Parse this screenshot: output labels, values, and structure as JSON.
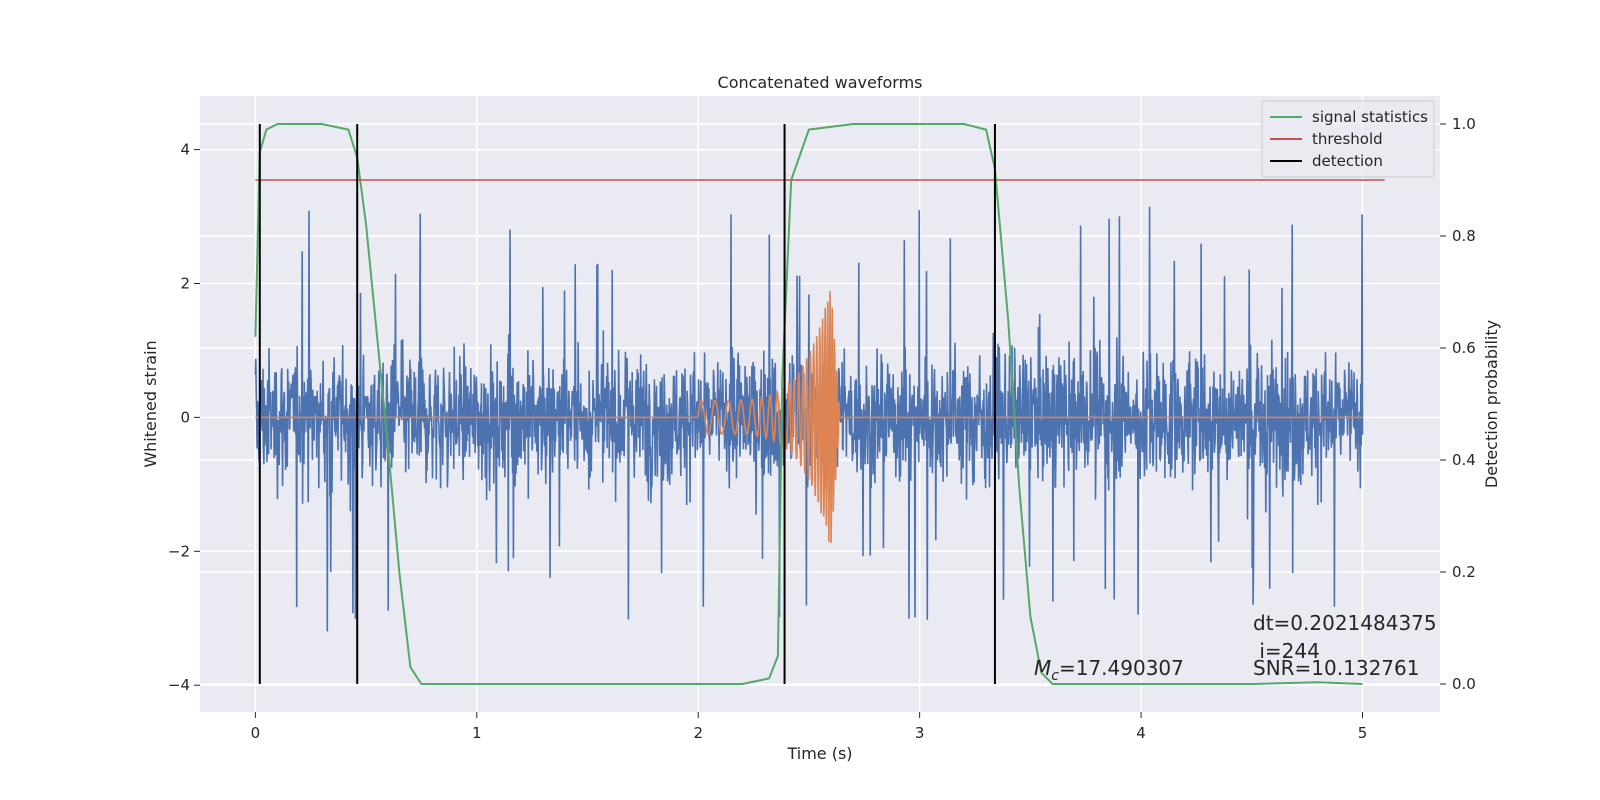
{
  "chart_data": {
    "type": "line",
    "title": "Concatenated waveforms",
    "xlabel": "Time (s)",
    "ylabel": "Whitened strain",
    "y2label": "Detection probability",
    "xlim": [
      -0.25,
      5.35
    ],
    "ylim": [
      -4.4,
      4.8
    ],
    "y2lim": [
      -0.05,
      1.05
    ],
    "x_ticks": [
      0,
      1,
      2,
      3,
      4,
      5
    ],
    "x_tick_labels": [
      "0",
      "1",
      "2",
      "3",
      "4",
      "5"
    ],
    "y_ticks": [
      -4,
      -2,
      0,
      2,
      4
    ],
    "y_tick_labels": [
      "−4",
      "−2",
      "0",
      "2",
      "4"
    ],
    "y2_ticks": [
      0.0,
      0.2,
      0.4,
      0.6,
      0.8,
      1.0
    ],
    "y2_tick_labels": [
      "0.0",
      "0.2",
      "0.4",
      "0.6",
      "0.8",
      "1.0"
    ],
    "grid": true,
    "legend_position": "top-right",
    "legend": [
      "signal statistics",
      "threshold",
      "detection"
    ],
    "colors": {
      "noise": "#4c72b0",
      "waveform": "#dd8452",
      "signal_statistics": "#55a868",
      "threshold": "#c44e52",
      "detection": "#000000",
      "axes_bg": "#eaeaf2",
      "grid": "#ffffff",
      "text": "#262626"
    },
    "series": [
      {
        "name": "signal statistics",
        "axis": "right",
        "x": [
          0.0,
          0.02,
          0.05,
          0.1,
          0.3,
          0.42,
          0.46,
          0.5,
          0.55,
          0.6,
          0.65,
          0.7,
          0.75,
          0.8,
          1.5,
          2.2,
          2.32,
          2.36,
          2.38,
          2.42,
          2.5,
          2.7,
          3.2,
          3.3,
          3.34,
          3.4,
          3.45,
          3.5,
          3.55,
          3.6,
          4.0,
          4.5,
          4.8,
          5.0
        ],
        "y": [
          0.62,
          0.95,
          0.99,
          1.0,
          1.0,
          0.99,
          0.94,
          0.82,
          0.62,
          0.42,
          0.2,
          0.03,
          0.0,
          0.0,
          0.0,
          0.0,
          0.01,
          0.05,
          0.55,
          0.9,
          0.99,
          1.0,
          1.0,
          0.99,
          0.92,
          0.65,
          0.35,
          0.12,
          0.02,
          0.0,
          0.0,
          0.0,
          0.003,
          0.0
        ]
      },
      {
        "name": "threshold",
        "axis": "right",
        "x": [
          0.0,
          5.1
        ],
        "y": [
          0.9,
          0.9
        ]
      }
    ],
    "detections": [
      0.02,
      0.46,
      2.39,
      3.34
    ],
    "noise_series": {
      "x_range": [
        0.0,
        5.0
      ],
      "typical_amplitude": 0.8,
      "peak_amplitude": 4.2
    },
    "waveform_series": {
      "x_range": [
        0.0,
        5.0
      ],
      "chirp_start": 2.0,
      "merger": 2.6,
      "start_amplitude": 0.25,
      "peak_amplitude": 2.0
    },
    "annotations": {
      "dt": "dt=0.2021484375",
      "i": " i=244",
      "snr": "SNR=10.132761",
      "mc_symbol": "M",
      "mc_sub": "c",
      "mc_value": "=17.490307"
    }
  }
}
